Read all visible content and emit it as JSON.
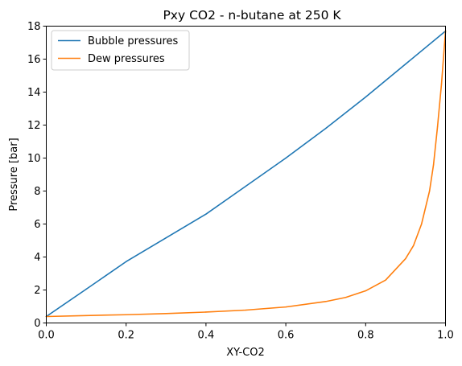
{
  "chart_data": {
    "type": "line",
    "title": "Pxy CO2 - n-butane at 250 K",
    "xlabel": "XY-CO2",
    "ylabel": "Pressure [bar]",
    "xlim": [
      0.0,
      1.0
    ],
    "ylim": [
      0,
      18
    ],
    "x_ticks": [
      "0.0",
      "0.2",
      "0.4",
      "0.6",
      "0.8",
      "1.0"
    ],
    "y_ticks": [
      "0",
      "2",
      "4",
      "6",
      "8",
      "10",
      "12",
      "14",
      "16",
      "18"
    ],
    "grid": false,
    "legend_position": "top-left",
    "series": [
      {
        "name": "Bubble pressures",
        "color": "#1f77b4",
        "x": [
          0.0,
          0.1,
          0.2,
          0.3,
          0.4,
          0.5,
          0.6,
          0.7,
          0.8,
          0.9,
          1.0
        ],
        "y": [
          0.39,
          2.05,
          3.72,
          5.16,
          6.6,
          8.3,
          10.0,
          11.8,
          13.7,
          15.7,
          17.7
        ]
      },
      {
        "name": "Dew pressures",
        "color": "#ff7f0e",
        "x": [
          0.0,
          0.1,
          0.2,
          0.3,
          0.4,
          0.5,
          0.6,
          0.7,
          0.75,
          0.8,
          0.85,
          0.9,
          0.92,
          0.94,
          0.96,
          0.97,
          0.98,
          0.99,
          1.0
        ],
        "y": [
          0.39,
          0.45,
          0.5,
          0.57,
          0.66,
          0.78,
          0.97,
          1.3,
          1.55,
          1.95,
          2.6,
          3.9,
          4.7,
          6.0,
          8.0,
          9.6,
          11.9,
          14.5,
          17.7
        ]
      }
    ]
  }
}
